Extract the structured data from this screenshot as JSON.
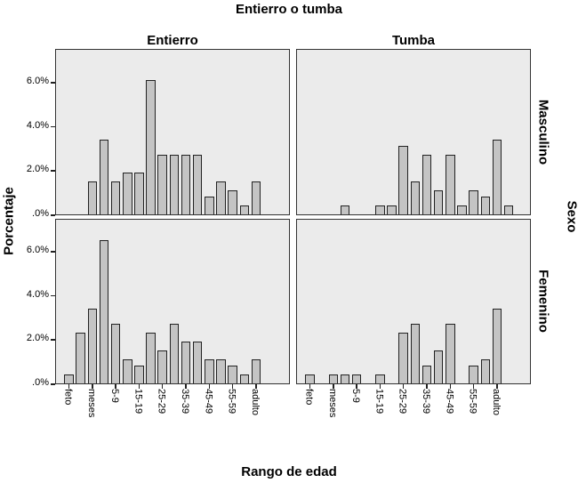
{
  "chart_data": {
    "type": "bar",
    "title": "Entierro o tumba",
    "xlabel": "Rango de edad",
    "ylabel": "Porcentaje",
    "row_facet_label": "Sexo",
    "column_facets": [
      "Entierro",
      "Tumba"
    ],
    "row_facets": [
      "Masculino",
      "Femenino"
    ],
    "ylim": [
      0,
      7.2
    ],
    "y_ticks": [
      ".0%",
      "2.0%",
      "4.0%",
      "6.0%"
    ],
    "y_tick_values": [
      0,
      2,
      4,
      6
    ],
    "categories": [
      "feto",
      "",
      "meses",
      "",
      "5-9",
      "",
      "15-19",
      "",
      "25-29",
      "",
      "35-39",
      "",
      "45-49",
      "",
      "55-59",
      "",
      "adulto",
      ""
    ],
    "visible_tick_labels": [
      "feto",
      "meses",
      "5-9",
      "15-19",
      "25-29",
      "35-39",
      "45-49",
      "55-59",
      "adulto"
    ],
    "grid": false,
    "legend": "none",
    "panels": [
      {
        "row": "Masculino",
        "col": "Entierro",
        "values": [
          0,
          0,
          1.5,
          3.4,
          1.5,
          1.9,
          1.9,
          6.1,
          2.7,
          2.7,
          2.7,
          2.7,
          0.8,
          1.5,
          1.1,
          0.4,
          1.5,
          0
        ]
      },
      {
        "row": "Masculino",
        "col": "Tumba",
        "values": [
          0,
          0,
          0,
          0.4,
          0,
          0,
          0.4,
          0.4,
          3.1,
          1.5,
          2.7,
          1.1,
          2.7,
          0.4,
          1.1,
          0.8,
          3.4,
          0.4
        ]
      },
      {
        "row": "Femenino",
        "col": "Entierro",
        "values": [
          0.4,
          2.3,
          3.4,
          6.5,
          2.7,
          1.1,
          0.8,
          2.3,
          1.5,
          2.7,
          1.9,
          1.9,
          1.1,
          1.1,
          0.8,
          0.4,
          1.1,
          0
        ]
      },
      {
        "row": "Femenino",
        "col": "Tumba",
        "values": [
          0.4,
          0,
          0.4,
          0.4,
          0.4,
          0,
          0.4,
          0,
          2.3,
          2.7,
          0.8,
          1.5,
          2.7,
          0,
          0.8,
          1.1,
          3.4,
          0
        ]
      }
    ]
  },
  "labels": {
    "title": "Entierro o tumba",
    "col0": "Entierro",
    "col1": "Tumba",
    "row0": "Masculino",
    "row1": "Femenino",
    "row_facet": "Sexo",
    "ylabel": "Porcentaje",
    "xlabel": "Rango de edad"
  },
  "colors": {
    "panel_bg": "#ebebeb",
    "bar_fill": "#c4c4c4",
    "bar_edge": "#222222"
  }
}
